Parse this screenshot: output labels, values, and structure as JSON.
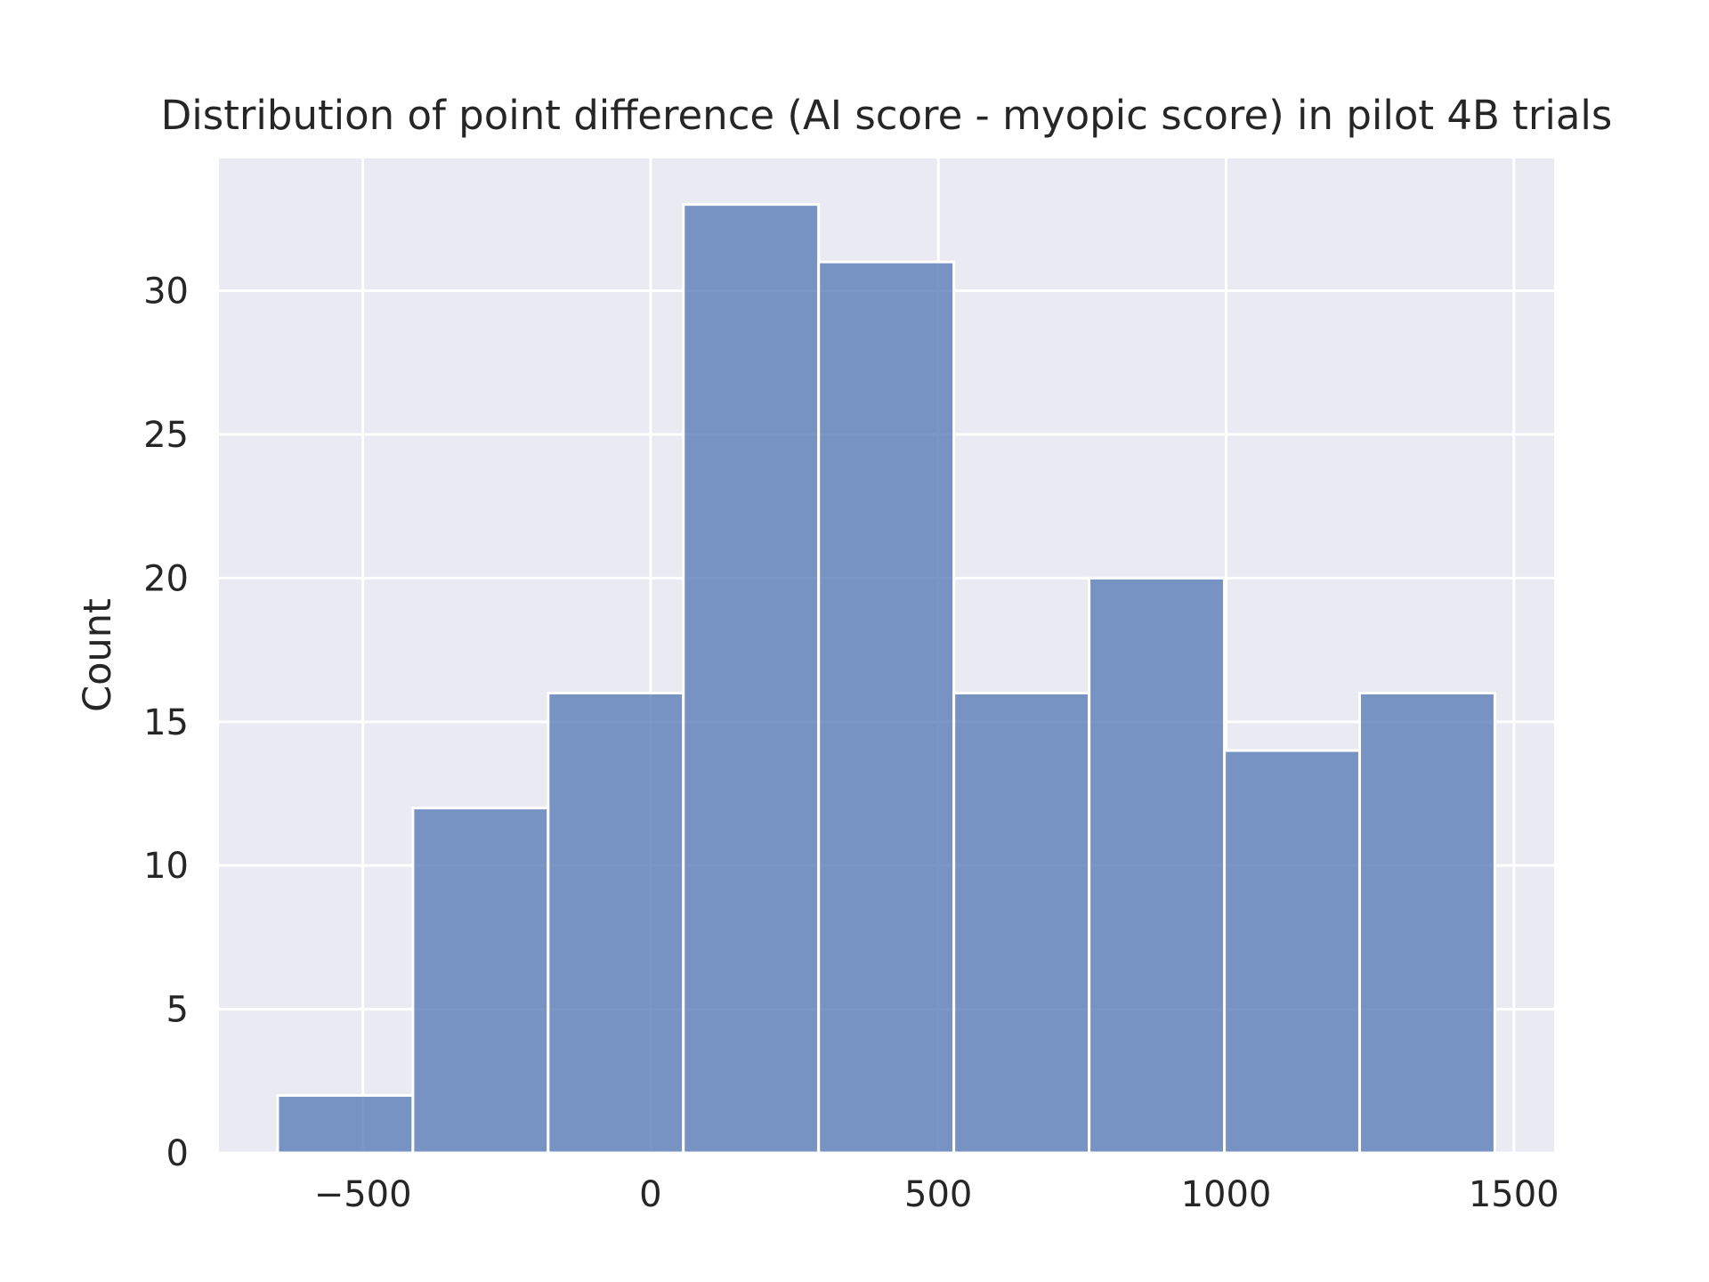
{
  "chart_data": {
    "type": "bar",
    "title": "Distribution of point difference (AI score - myopic score) in pilot 4B trials",
    "xlabel": "",
    "ylabel": "Count",
    "bin_edges": [
      -648,
      -413,
      -178,
      57,
      292,
      527,
      762,
      997,
      1232,
      1467
    ],
    "values": [
      2,
      12,
      16,
      33,
      31,
      16,
      20,
      14,
      16
    ],
    "xlim": [
      -750,
      1570
    ],
    "ylim": [
      0,
      34.6
    ],
    "xticks": [
      -500,
      0,
      500,
      1000,
      1500
    ],
    "xtick_labels": [
      "−500",
      "0",
      "500",
      "1000",
      "1500"
    ],
    "yticks": [
      0,
      5,
      10,
      15,
      20,
      25,
      30
    ],
    "ytick_labels": [
      "0",
      "5",
      "10",
      "15",
      "20",
      "25",
      "30"
    ],
    "grid": true,
    "legend": "none",
    "colors": {
      "bar_fill": "#5a7db6",
      "bar_edge": "#ffffff",
      "plot_background": "#eaeaf2",
      "grid": "#ffffff",
      "text": "#262626"
    }
  }
}
